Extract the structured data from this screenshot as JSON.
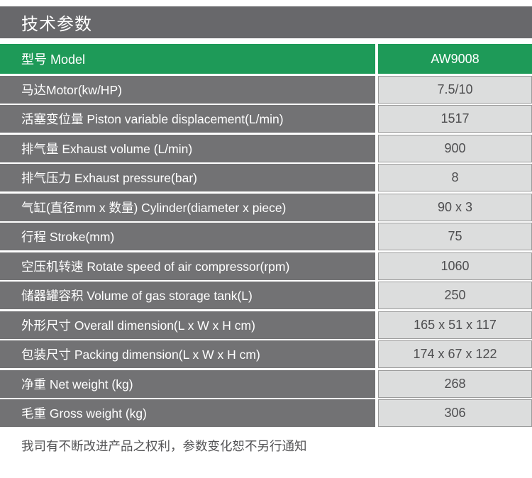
{
  "title": "技术参数",
  "table": {
    "header": {
      "label": "型号 Model",
      "value": "AW9008"
    },
    "rows": [
      {
        "label": "马达Motor(kw/HP)",
        "value": "7.5/10"
      },
      {
        "label": "活塞变位量 Piston variable displacement(L/min)",
        "value": "1517"
      },
      {
        "label": "排气量 Exhaust volume (L/min)",
        "value": "900"
      },
      {
        "label": "排气压力 Exhaust pressure(bar)",
        "value": "8"
      },
      {
        "label": "气缸(直径mm x 数量) Cylinder(diameter x piece)",
        "value": "90 x 3"
      },
      {
        "label": "行程 Stroke(mm)",
        "value": "75"
      },
      {
        "label": "空压机转速 Rotate speed of air compressor(rpm)",
        "value": "1060"
      },
      {
        "label": "储器罐容积 Volume of gas storage tank(L)",
        "value": "250"
      },
      {
        "label": "外形尺寸 Overall dimension(L x W x H cm)",
        "value": "165 x 51 x 117"
      },
      {
        "label": "包装尺寸 Packing dimension(L x W x H cm)",
        "value": "174 x 67 x 122"
      },
      {
        "label": "净重 Net weight (kg)",
        "value": "268"
      },
      {
        "label": "毛重 Gross weight (kg)",
        "value": "306"
      }
    ]
  },
  "disclaimer": "我司有不断改进产品之权利，参数变化恕不另行通知",
  "colors": {
    "accent_green": "#1e9a58",
    "title_bar_gray": "#68686b",
    "label_cell_gray": "#727274",
    "value_cell_gray": "#dcdddd",
    "value_text": "#4e4e50"
  }
}
